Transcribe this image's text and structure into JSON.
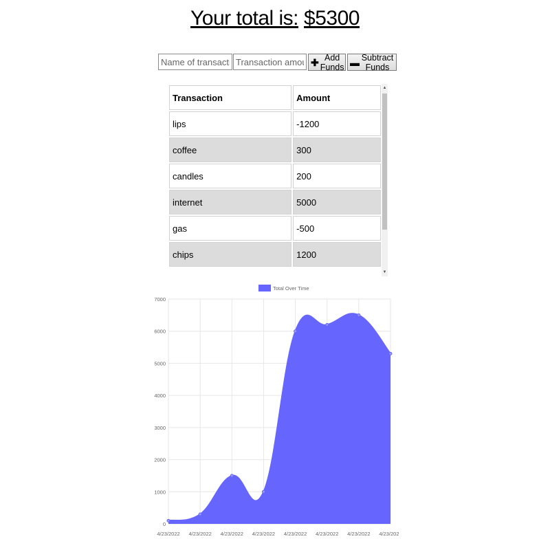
{
  "header": {
    "total_label": "Your total is:",
    "total_value": "$5300"
  },
  "form": {
    "name_placeholder": "Name of transaction",
    "amount_placeholder": "Transaction amount",
    "add_icon": "plus-icon",
    "add_label": "Add Funds",
    "subtract_icon": "minus-icon",
    "subtract_label": "Subtract Funds"
  },
  "table": {
    "headers": [
      "Transaction",
      "Amount"
    ],
    "rows": [
      {
        "name": "lips",
        "amount": "-1200"
      },
      {
        "name": "coffee",
        "amount": "300"
      },
      {
        "name": "candles",
        "amount": "200"
      },
      {
        "name": "internet",
        "amount": "5000"
      },
      {
        "name": "gas",
        "amount": "-500"
      },
      {
        "name": "chips",
        "amount": "1200"
      }
    ]
  },
  "chart_data": {
    "type": "area",
    "legend": "Total Over Time",
    "legend_position": "top-center",
    "categories": [
      "4/23/2022",
      "4/23/2022",
      "4/23/2022",
      "4/23/2022",
      "4/23/2022",
      "4/23/2022",
      "4/23/2022",
      "4/23/2022"
    ],
    "values": [
      100,
      300,
      1500,
      1000,
      6000,
      6200,
      6500,
      5300
    ],
    "yticks": [
      0,
      1000,
      2000,
      3000,
      4000,
      5000,
      6000,
      7000
    ],
    "ylim": [
      0,
      7000
    ],
    "grid": true,
    "fill_color": "#6666ff",
    "line_color": "#6666ff"
  },
  "colors": {
    "row_alt": "#dcdcdc",
    "border": "#d2d2d2"
  }
}
